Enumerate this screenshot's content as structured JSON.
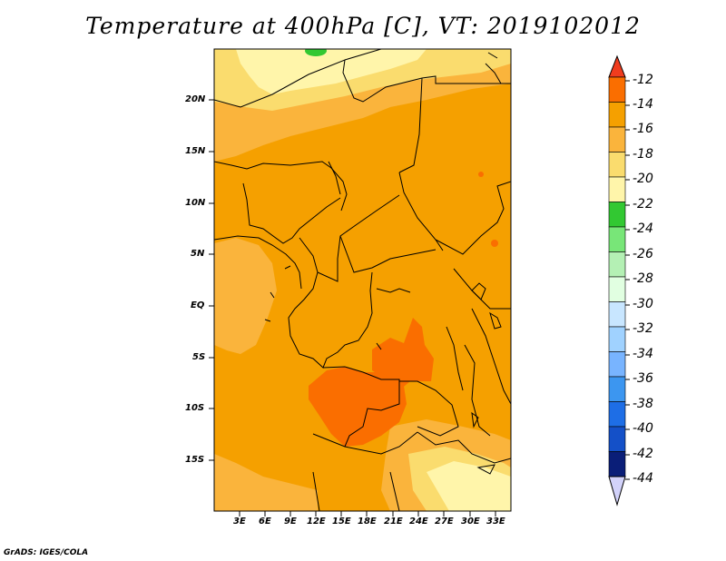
{
  "title": "Temperature at 400hPa [C], VT: 2019102012",
  "credit": "GrADS: IGES/COLA",
  "map": {
    "lat_labels": [
      "20N",
      "15N",
      "10N",
      "5N",
      "EQ",
      "5S",
      "10S",
      "15S"
    ],
    "lon_labels": [
      "3E",
      "6E",
      "9E",
      "12E",
      "15E",
      "18E",
      "21E",
      "24E",
      "27E",
      "30E",
      "33E"
    ]
  },
  "colorbar": {
    "labels": [
      "-12",
      "-14",
      "-16",
      "-18",
      "-20",
      "-22",
      "-24",
      "-26",
      "-28",
      "-30",
      "-32",
      "-34",
      "-36",
      "-38",
      "-40",
      "-42",
      "-44"
    ],
    "colors": [
      "#f03c1e",
      "#fa6e00",
      "#f5a000",
      "#fab43c",
      "#fadc6e",
      "#fff5aa",
      "#32c832",
      "#78e678",
      "#b4f0b4",
      "#e1ffe1",
      "#c8e6ff",
      "#a0d2ff",
      "#78b4ff",
      "#3c96f0",
      "#1e6ee6",
      "#1450c8",
      "#0a1e78",
      "#d2d2fa"
    ]
  }
}
